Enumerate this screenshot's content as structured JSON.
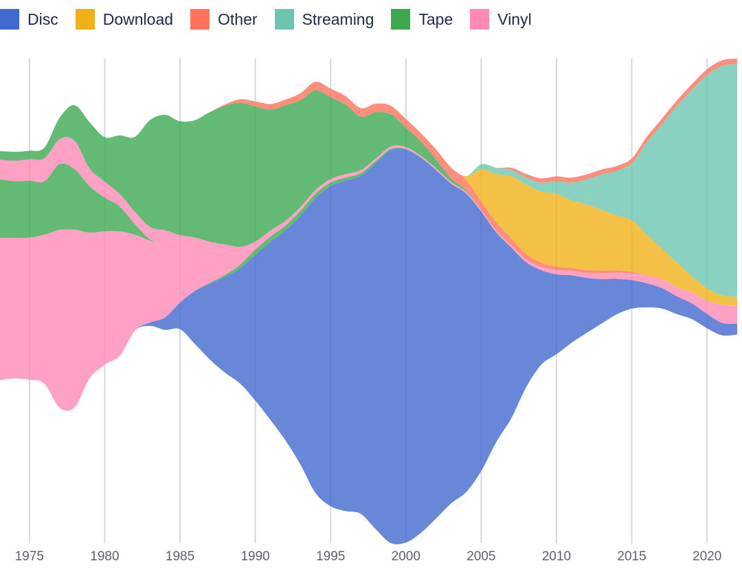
{
  "chart_data": {
    "type": "area",
    "variant": "streamgraph",
    "title": "",
    "xlabel": "",
    "ylabel": "",
    "x_ticks": [
      "1975",
      "1980",
      "1985",
      "1990",
      "1995",
      "2000",
      "2005",
      "2010",
      "2015",
      "2020"
    ],
    "grid": "vertical",
    "legend_position": "top-left",
    "legend": [
      {
        "label": "Disc",
        "color": "#4269d0"
      },
      {
        "label": "Download",
        "color": "#efb118"
      },
      {
        "label": "Other",
        "color": "#ff725c"
      },
      {
        "label": "Streaming",
        "color": "#6cc5b0"
      },
      {
        "label": "Tape",
        "color": "#3ca951"
      },
      {
        "label": "Vinyl",
        "color": "#ff8ab7"
      }
    ],
    "x": [
      1973,
      1974,
      1975,
      1976,
      1977,
      1978,
      1979,
      1980,
      1981,
      1982,
      1983,
      1984,
      1985,
      1986,
      1987,
      1988,
      1989,
      1990,
      1991,
      1992,
      1993,
      1994,
      1995,
      1996,
      1997,
      1998,
      1999,
      2000,
      2001,
      2002,
      2003,
      2004,
      2005,
      2006,
      2007,
      2008,
      2009,
      2010,
      2011,
      2012,
      2013,
      2014,
      2015,
      2016,
      2017,
      2018,
      2019,
      2020,
      2021,
      2022
    ],
    "series": [
      {
        "format": "Disc",
        "values": [
          0,
          0,
          0,
          0,
          0,
          0,
          0,
          0,
          0,
          0,
          200,
          700,
          1500,
          3000,
          4300,
          5400,
          6500,
          8200,
          10000,
          11800,
          14000,
          16600,
          18000,
          18600,
          19000,
          20600,
          22100,
          22100,
          21100,
          19600,
          18000,
          16800,
          14600,
          11800,
          9600,
          7000,
          5300,
          4500,
          3800,
          3100,
          2500,
          2000,
          1600,
          1350,
          1150,
          1000,
          880,
          800,
          700,
          600
        ]
      },
      {
        "format": "Tape",
        "values": [
          0,
          0,
          0,
          0,
          0,
          0,
          0,
          0,
          0,
          0,
          0,
          0,
          0,
          0,
          40,
          120,
          200,
          300,
          300,
          280,
          280,
          240,
          200,
          160,
          160,
          120,
          80,
          40,
          0,
          0,
          0,
          0,
          0,
          0,
          0,
          0,
          0,
          0,
          0,
          0,
          0,
          0,
          0,
          0,
          0,
          0,
          0,
          0,
          0,
          0
        ]
      },
      {
        "format": "Vinyl",
        "values": [
          8000,
          7900,
          8000,
          8400,
          10000,
          10000,
          8200,
          7500,
          7000,
          5400,
          4600,
          4000,
          3200,
          2400,
          1800,
          1200,
          600,
          200,
          150,
          120,
          100,
          100,
          100,
          100,
          100,
          80,
          80,
          60,
          60,
          60,
          60,
          60,
          60,
          60,
          80,
          120,
          160,
          200,
          220,
          250,
          290,
          320,
          360,
          400,
          480,
          480,
          600,
          720,
          1000,
          1000
        ]
      },
      {
        "format": "Tape",
        "values": [
          3300,
          3200,
          3200,
          3000,
          3700,
          3400,
          2600,
          1900,
          1400,
          600,
          80,
          0,
          0,
          0,
          0,
          0,
          0,
          0,
          0,
          0,
          0,
          0,
          0,
          0,
          0,
          0,
          0,
          0,
          0,
          0,
          0,
          0,
          0,
          0,
          0,
          0,
          0,
          0,
          0,
          0,
          0,
          0,
          0,
          0,
          0,
          0,
          0,
          0,
          0,
          0
        ]
      },
      {
        "format": "Vinyl",
        "values": [
          1100,
          1150,
          1200,
          1300,
          1400,
          1600,
          1000,
          900,
          700,
          700,
          700,
          900,
          600,
          600,
          500,
          500,
          400,
          250,
          200,
          150,
          120,
          120,
          100,
          100,
          80,
          60,
          60,
          40,
          40,
          40,
          30,
          30,
          30,
          30,
          30,
          30,
          30,
          30,
          30,
          30,
          30,
          30,
          30,
          30,
          30,
          30,
          30,
          30,
          30,
          30
        ]
      },
      {
        "format": "Tape",
        "values": [
          480,
          500,
          480,
          600,
          1200,
          2000,
          2600,
          2500,
          3300,
          4200,
          6000,
          6500,
          6400,
          6600,
          7300,
          7800,
          8100,
          7600,
          6800,
          6500,
          6000,
          5600,
          4600,
          3900,
          3000,
          2600,
          1800,
          1100,
          800,
          500,
          200,
          80,
          0,
          0,
          0,
          0,
          0,
          0,
          0,
          0,
          0,
          0,
          0,
          0,
          0,
          0,
          0,
          0,
          0,
          0
        ]
      },
      {
        "format": "Other",
        "values": [
          0,
          0,
          0,
          0,
          0,
          0,
          0,
          0,
          0,
          0,
          0,
          0,
          0,
          0,
          0,
          80,
          200,
          280,
          320,
          320,
          400,
          480,
          480,
          480,
          480,
          480,
          480,
          480,
          480,
          560,
          600,
          600,
          480,
          480,
          400,
          320,
          240,
          200,
          160,
          160,
          160,
          120,
          80,
          0,
          0,
          0,
          0,
          0,
          0,
          0
        ]
      },
      {
        "format": "Download",
        "values": [
          0,
          0,
          0,
          0,
          0,
          0,
          0,
          0,
          0,
          0,
          0,
          0,
          0,
          0,
          0,
          0,
          0,
          0,
          0,
          0,
          0,
          0,
          0,
          0,
          0,
          0,
          0,
          0,
          0,
          0,
          0,
          200,
          1800,
          2700,
          3500,
          3900,
          4000,
          4100,
          3800,
          3700,
          3400,
          3100,
          2900,
          2300,
          1700,
          1400,
          900,
          700,
          520,
          480
        ]
      },
      {
        "format": "Streaming",
        "values": [
          0,
          0,
          0,
          0,
          0,
          0,
          0,
          0,
          0,
          0,
          0,
          0,
          0,
          0,
          0,
          0,
          0,
          0,
          0,
          0,
          0,
          0,
          0,
          0,
          0,
          0,
          0,
          0,
          0,
          0,
          0,
          0,
          280,
          360,
          360,
          400,
          500,
          700,
          1000,
          1400,
          2000,
          2500,
          3200,
          5200,
          7000,
          8800,
          10500,
          12000,
          12900,
          13100
        ]
      },
      {
        "format": "Other",
        "values": [
          0,
          0,
          0,
          0,
          0,
          0,
          0,
          0,
          0,
          0,
          0,
          0,
          0,
          0,
          0,
          0,
          0,
          0,
          0,
          0,
          0,
          0,
          0,
          0,
          0,
          0,
          0,
          0,
          0,
          0,
          0,
          0,
          0,
          0,
          120,
          200,
          240,
          280,
          280,
          280,
          280,
          280,
          280,
          320,
          320,
          320,
          320,
          320,
          320,
          320
        ]
      }
    ]
  }
}
